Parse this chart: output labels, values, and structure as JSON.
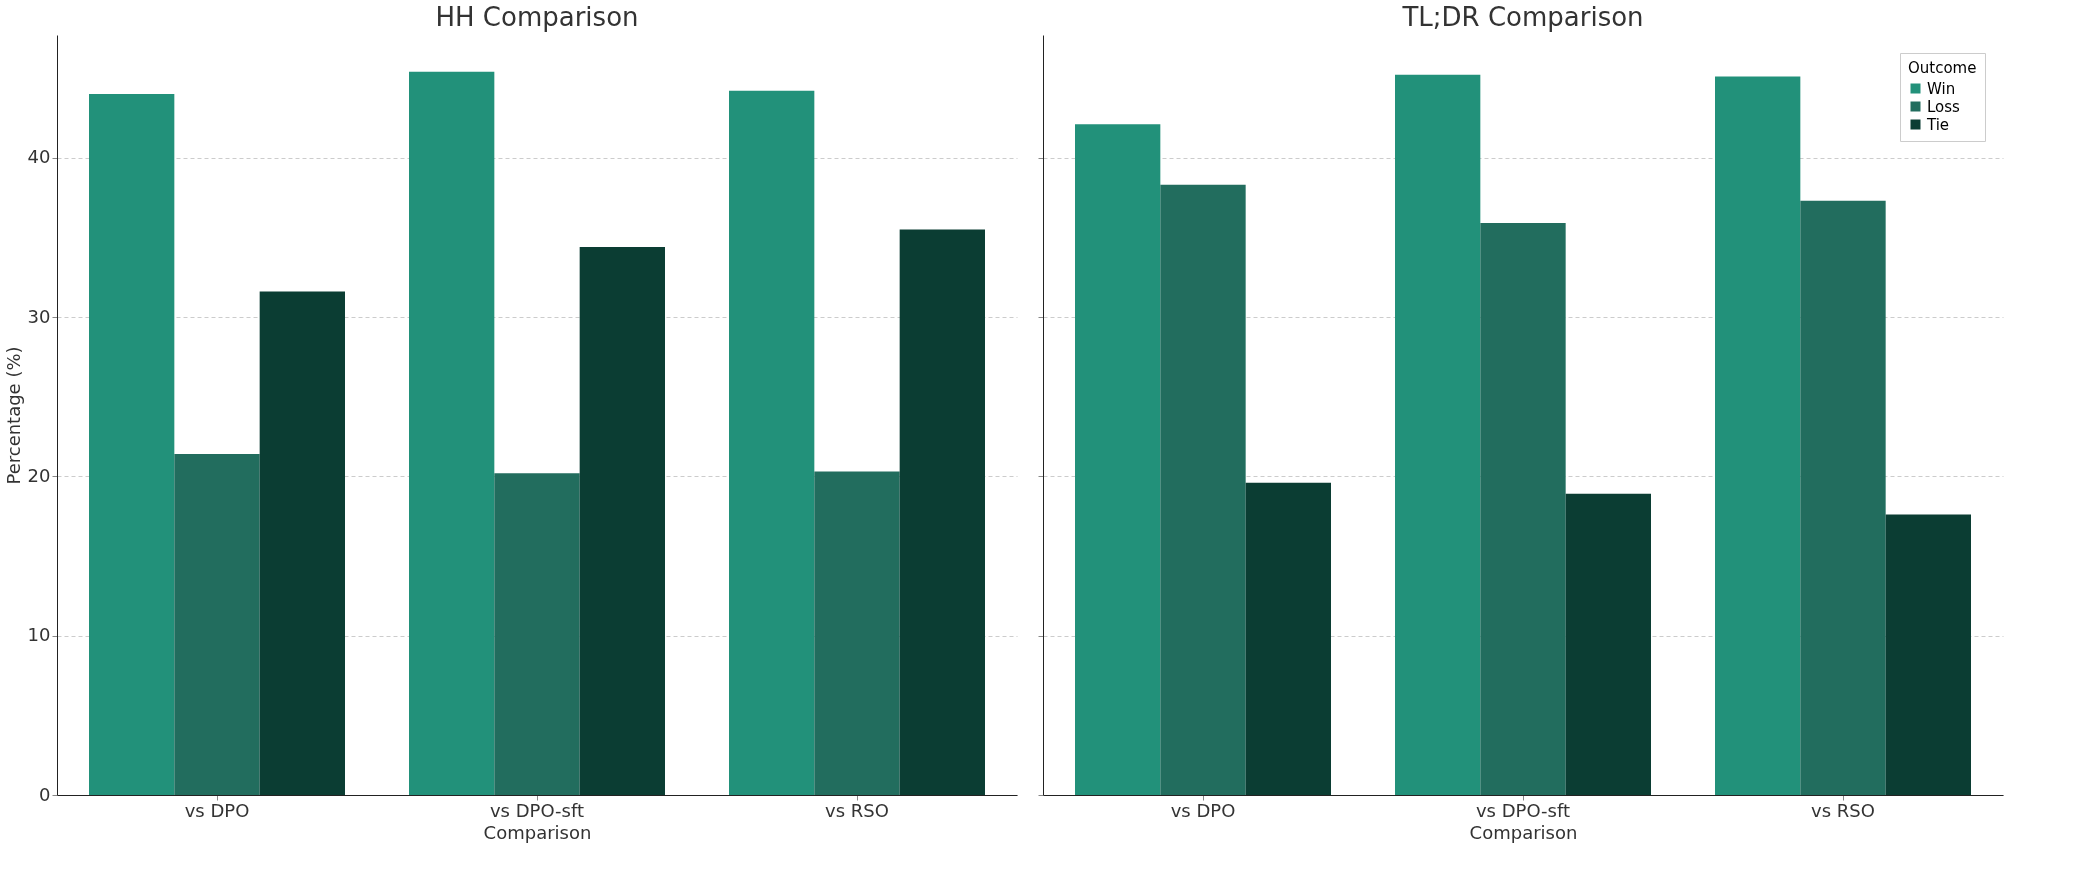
{
  "chart_data": [
    {
      "type": "bar",
      "title": "HH Comparison",
      "xlabel": "Comparison",
      "ylabel": "Percentage (%)",
      "categories": [
        "vs DPO",
        "vs DPO-sft",
        "vs RSO"
      ],
      "series": [
        {
          "color": "#22917a",
          "values": [
            44.0,
            45.4,
            44.2
          ]
        },
        {
          "color": "#226d5e",
          "values": [
            21.4,
            20.2,
            20.3
          ]
        },
        {
          "color": "#0b3d33",
          "values": [
            31.6,
            34.4,
            35.5
          ]
        }
      ],
      "ylim": [
        0,
        47.7
      ],
      "yticks": [
        0,
        10,
        20,
        30,
        40
      ],
      "grid": "y"
    },
    {
      "type": "bar",
      "title": "TL;DR Comparison",
      "xlabel": "Comparison",
      "legend_title": "Outcome",
      "categories": [
        "vs DPO",
        "vs DPO-sft",
        "vs RSO"
      ],
      "series": [
        {
          "name": "Win",
          "color": "#22917a",
          "values": [
            42.1,
            45.2,
            45.1
          ]
        },
        {
          "name": "Loss",
          "color": "#226d5e",
          "values": [
            38.3,
            35.9,
            37.3
          ]
        },
        {
          "name": "Tie",
          "color": "#0b3d33",
          "values": [
            19.6,
            18.9,
            17.6
          ]
        }
      ],
      "ylim": [
        0,
        47.7
      ],
      "yticks": [
        0,
        10,
        20,
        30,
        40
      ],
      "grid": "y",
      "legend": "top right",
      "tick_labels": "x"
    }
  ]
}
